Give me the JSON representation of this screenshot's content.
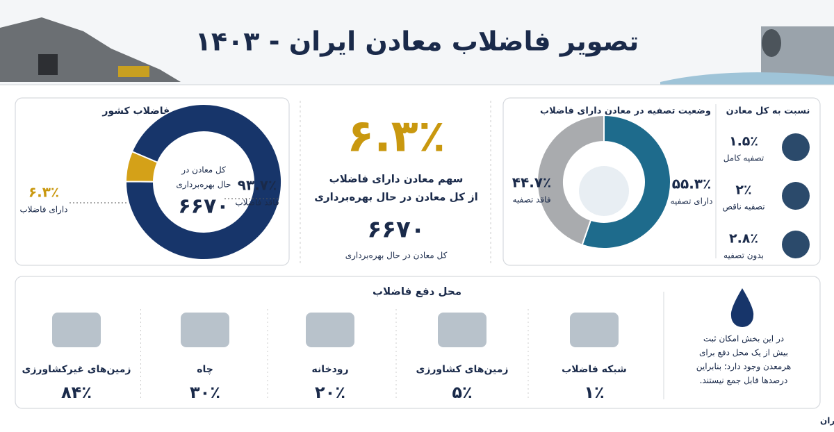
{
  "header": {
    "title": "تصویر فاضلاب معادن ایران - ۱۴۰۳"
  },
  "country_panel": {
    "title": "معادن دارای فاضلاب کشور",
    "center_label": [
      "کل معادن در",
      "حال بهره‌برداری"
    ],
    "center_value": "۶۶۷۰",
    "chart": {
      "type": "donut",
      "categories": [
        "فاقد فاضلاب",
        "دارای فاضلاب"
      ],
      "values": [
        93.7,
        6.3
      ],
      "value_labels": [
        "۹۳.۷٪",
        "۶.۳٪"
      ],
      "colors": [
        "#17356a",
        "#d4a118"
      ]
    }
  },
  "middle": {
    "big_value": "۶.۳٪",
    "caption": [
      "سهم معادن دارای فاضلاب",
      "از کل معادن در حال بهره‌برداری"
    ],
    "total": "۶۶۷۰",
    "total_label": "کل معادن در حال بهره‌برداری"
  },
  "treatment_panel": {
    "title": "وضعیت تصفیه در معادن دارای فاضلاب",
    "chart": {
      "type": "donut",
      "categories": [
        "دارای تصفیه",
        "فاقد تصفیه"
      ],
      "values": [
        55.3,
        44.7
      ],
      "value_labels": [
        "۵۵.۳٪",
        "۴۴.۷٪"
      ],
      "colors": [
        "#1e6b8c",
        "#a9abae"
      ]
    }
  },
  "ratio_panel": {
    "title": "نسبت به کل معادن",
    "items": [
      {
        "value": "۱.۵٪",
        "label": "تصفیه کامل"
      },
      {
        "value": "۲٪",
        "label": "تصفیه ناقص"
      },
      {
        "value": "۲.۸٪",
        "label": "بدون تصفیه"
      }
    ]
  },
  "discharge": {
    "title": "محل دفع فاضلاب",
    "items": [
      {
        "label": "شبکه فاضلاب",
        "value": "۱٪"
      },
      {
        "label": "زمین‌های کشاورزی",
        "value": "۵٪"
      },
      {
        "label": "رودخانه",
        "value": "۲۰٪"
      },
      {
        "label": "چاه",
        "value": "۳۰٪"
      },
      {
        "label": "زمین‌های غیرکشاورزی",
        "value": "۸۴٪"
      }
    ],
    "note": [
      "در این بخش امکان ثبت",
      "بیش از یک محل دفع برای",
      "هرمعدن وجود دارد؛ بنابراین",
      "درصدها قابل جمع نیستند."
    ]
  },
  "source": "منبع: مرکز آمار ایران"
}
